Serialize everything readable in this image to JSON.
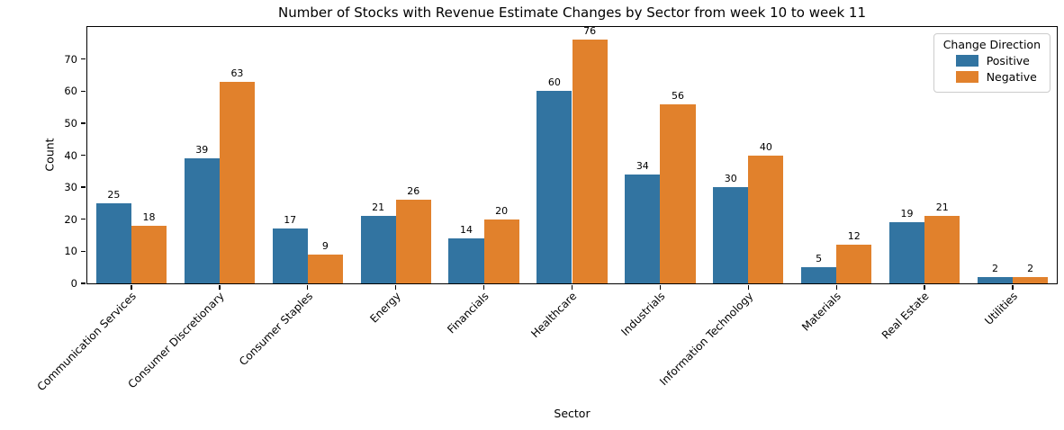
{
  "chart_data": {
    "type": "bar",
    "title": "Number of Stocks with Revenue Estimate Changes by Sector from week 10 to week 11",
    "xlabel": "Sector",
    "ylabel": "Count",
    "categories": [
      "Communication Services",
      "Consumer Discretionary",
      "Consumer Staples",
      "Energy",
      "Financials",
      "Healthcare",
      "Industrials",
      "Information Technology",
      "Materials",
      "Real Estate",
      "Utilities"
    ],
    "series": [
      {
        "name": "Positive",
        "color": "#3274a1",
        "values": [
          25,
          39,
          17,
          21,
          14,
          60,
          34,
          30,
          5,
          19,
          2
        ]
      },
      {
        "name": "Negative",
        "color": "#e1812c",
        "values": [
          18,
          63,
          9,
          26,
          20,
          76,
          56,
          40,
          12,
          21,
          2
        ]
      }
    ],
    "ylim": [
      0,
      80
    ],
    "yticks": [
      0,
      10,
      20,
      30,
      40,
      50,
      60,
      70
    ],
    "legend_title": "Change Direction",
    "legend_position": "upper right",
    "grid": false,
    "bar_labels": true,
    "background_color": "#ffffff",
    "spine_color": "#000000"
  }
}
